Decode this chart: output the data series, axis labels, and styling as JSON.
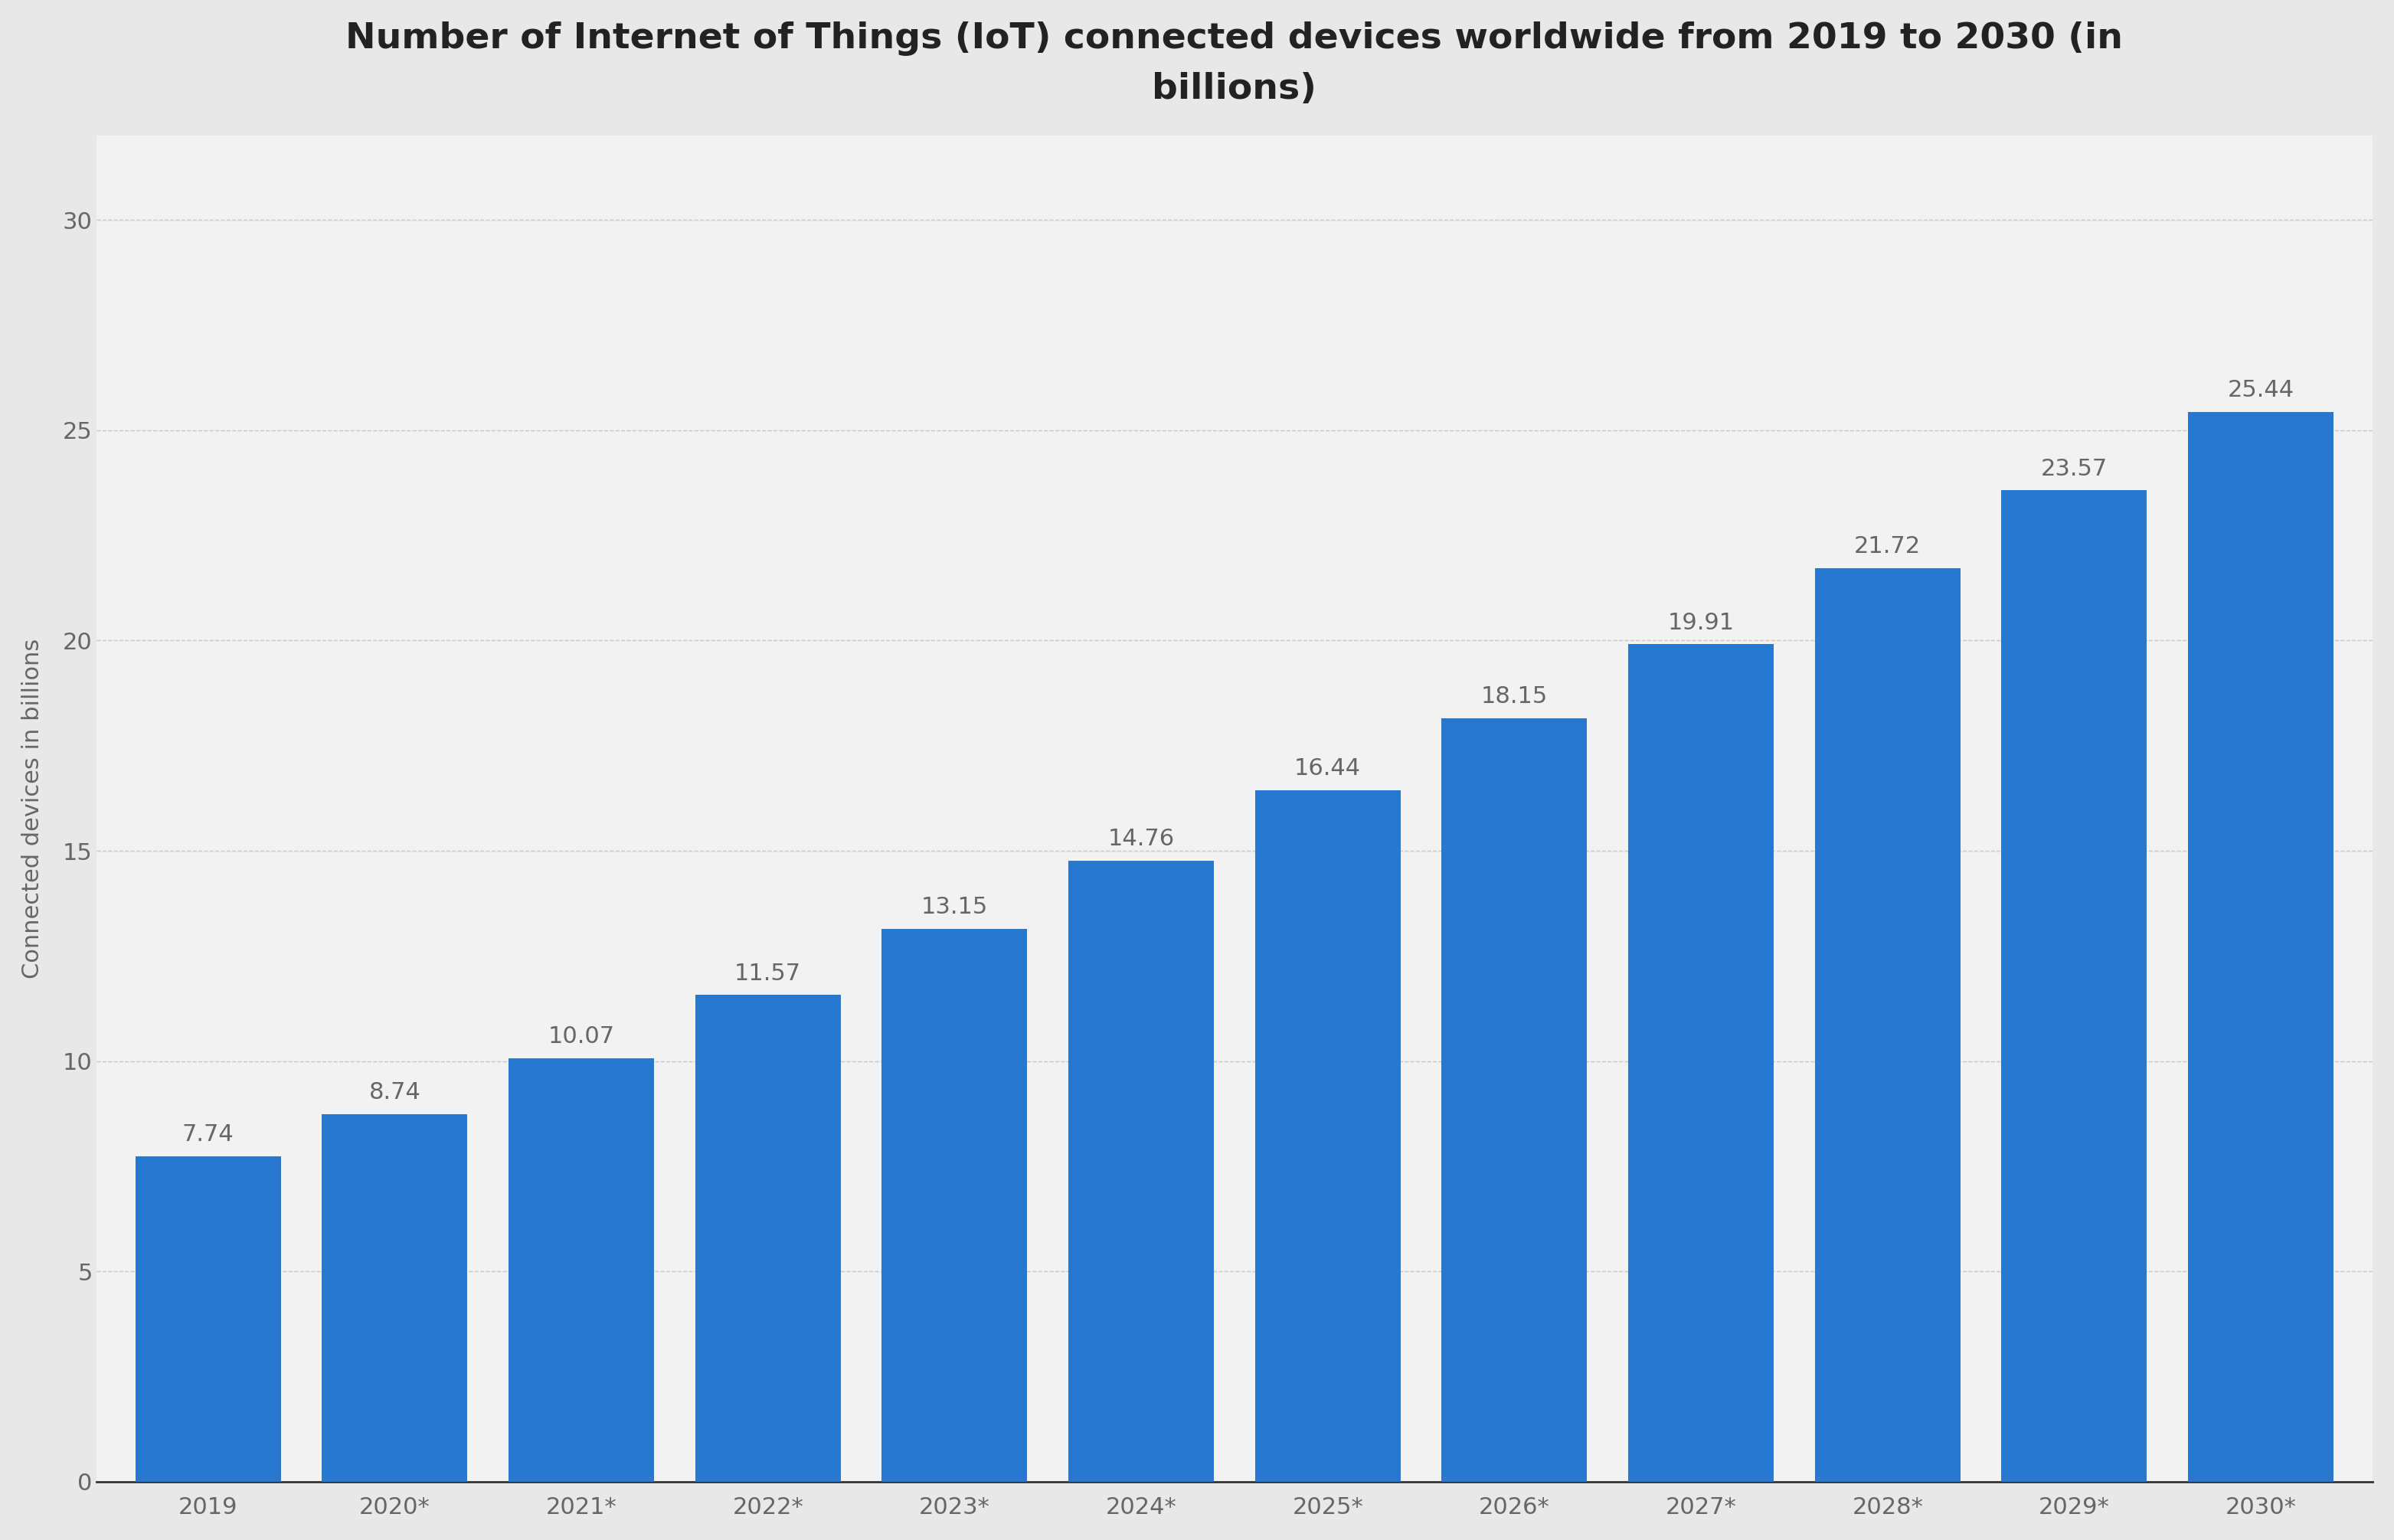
{
  "title": "Number of Internet of Things (IoT) connected devices worldwide from 2019 to 2030 (in\nbillions)",
  "ylabel": "Connected devices in billions",
  "categories": [
    "2019",
    "2020*",
    "2021*",
    "2022*",
    "2023*",
    "2024*",
    "2025*",
    "2026*",
    "2027*",
    "2028*",
    "2029*",
    "2030*"
  ],
  "values": [
    7.74,
    8.74,
    10.07,
    11.57,
    13.15,
    14.76,
    16.44,
    18.15,
    19.91,
    21.72,
    23.57,
    25.44
  ],
  "bar_color": "#2878d0",
  "background_color": "#e8e8e8",
  "plot_bg_color": "#f2f2f2",
  "ylim": [
    0,
    32
  ],
  "yticks": [
    0,
    5,
    10,
    15,
    20,
    25,
    30
  ],
  "bar_label_fontsize": 22,
  "title_fontsize": 34,
  "axis_label_fontsize": 22,
  "tick_fontsize": 22,
  "grid_color": "#c8c8c8",
  "grid_linestyle": "--",
  "label_color": "#666666",
  "title_color": "#222222",
  "bar_width": 0.78
}
